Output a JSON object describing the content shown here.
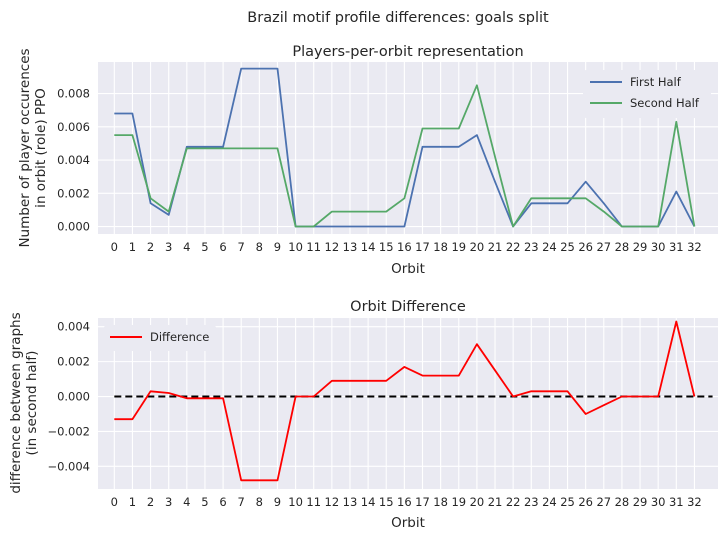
{
  "figure": {
    "suptitle": "Brazil motif profile differences: goals split"
  },
  "chart_data": [
    {
      "type": "line",
      "title": "Players-per-orbit representation",
      "xlabel": "Orbit",
      "ylabel": [
        "Number of player occurences",
        "in orbit (role) PPO"
      ],
      "x": [
        0,
        1,
        2,
        3,
        4,
        5,
        6,
        7,
        8,
        9,
        10,
        11,
        12,
        13,
        14,
        15,
        16,
        17,
        18,
        19,
        20,
        21,
        22,
        23,
        24,
        25,
        26,
        27,
        28,
        29,
        30,
        31,
        32
      ],
      "xlim": [
        -0.9,
        33.3
      ],
      "ylim": [
        -0.00045,
        0.0099
      ],
      "yticks": [
        0,
        0.002,
        0.004,
        0.006,
        0.008
      ],
      "ytick_labels": [
        "0.000",
        "0.002",
        "0.004",
        "0.006",
        "0.008"
      ],
      "grid": true,
      "legend": "top-right",
      "series": [
        {
          "name": "First Half",
          "color": "#4c72b0",
          "values": [
            0.0068,
            0.0068,
            0.0014,
            0.0007,
            0.0048,
            0.0048,
            0.0048,
            0.0095,
            0.0095,
            0.0095,
            0,
            0,
            0,
            0,
            0,
            0,
            0,
            0.0048,
            0.0048,
            0.0048,
            0.0055,
            0.0027,
            0,
            0.0014,
            0.0014,
            0.0014,
            0.0027,
            0.0014,
            0,
            0,
            0,
            0.0021,
            0
          ]
        },
        {
          "name": "Second Half",
          "color": "#55a868",
          "values": [
            0.0055,
            0.0055,
            0.0017,
            0.0009,
            0.0047,
            0.0047,
            0.0047,
            0.0047,
            0.0047,
            0.0047,
            0,
            0,
            0.0009,
            0.0009,
            0.0009,
            0.0009,
            0.0017,
            0.0059,
            0.0059,
            0.0059,
            0.0085,
            0.0042,
            0,
            0.0017,
            0.0017,
            0.0017,
            0.0017,
            0.0009,
            0,
            0,
            0,
            0.0063,
            0
          ]
        }
      ]
    },
    {
      "type": "line",
      "title": "Orbit Difference",
      "xlabel": "Orbit",
      "ylabel": [
        "difference between graphs",
        "(in second half)"
      ],
      "x": [
        0,
        1,
        2,
        3,
        4,
        5,
        6,
        7,
        8,
        9,
        10,
        11,
        12,
        13,
        14,
        15,
        16,
        17,
        18,
        19,
        20,
        21,
        22,
        23,
        24,
        25,
        26,
        27,
        28,
        29,
        30,
        31,
        32
      ],
      "xlim": [
        -0.9,
        33.3
      ],
      "ylim": [
        -0.0053,
        0.0045
      ],
      "yticks": [
        -0.004,
        -0.002,
        0,
        0.002,
        0.004
      ],
      "ytick_labels": [
        "−0.004",
        "−0.002",
        "0.000",
        "0.002",
        "0.004"
      ],
      "grid": true,
      "legend": "top-left",
      "series": [
        {
          "name": "Difference",
          "color": "#ff0000",
          "values": [
            -0.0013,
            -0.0013,
            0.0003,
            0.0002,
            -0.0001,
            -0.0001,
            -0.0001,
            -0.0048,
            -0.0048,
            -0.0048,
            0,
            0,
            0.0009,
            0.0009,
            0.0009,
            0.0009,
            0.0017,
            0.0012,
            0.0012,
            0.0012,
            0.003,
            0.0015,
            0,
            0.0003,
            0.0003,
            0.0003,
            -0.001,
            -0.0005,
            0,
            0,
            0,
            0.0043,
            0
          ]
        }
      ],
      "reference_line": {
        "y": 0,
        "x_range": [
          0,
          33
        ],
        "color": "#000000",
        "style": "dashed"
      }
    }
  ]
}
